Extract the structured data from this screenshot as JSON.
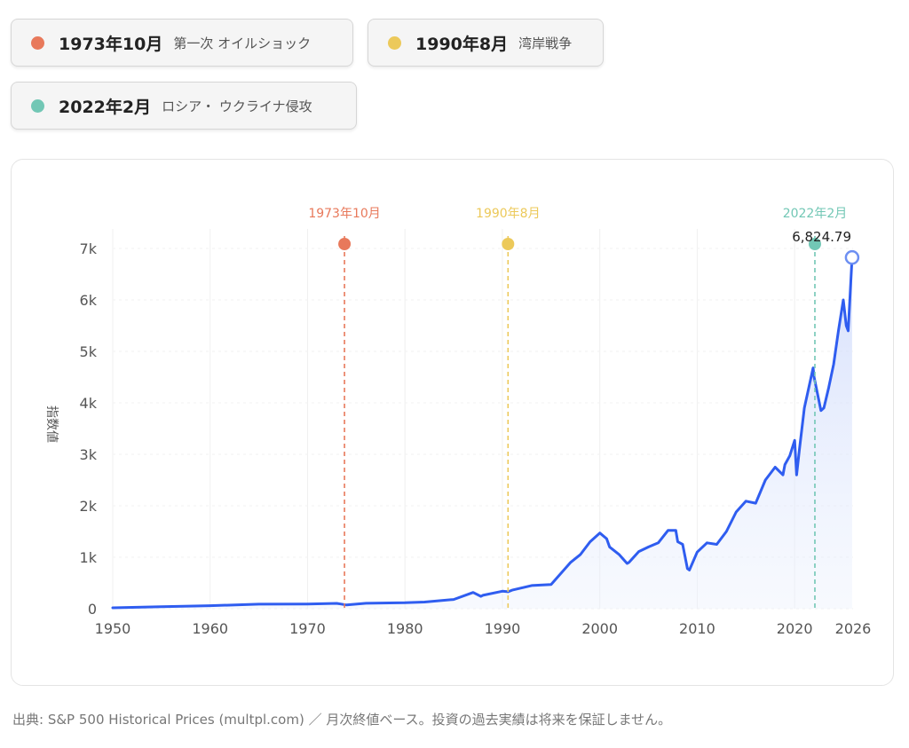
{
  "events": [
    {
      "date": "1973年10月",
      "desc": "第一次 オイルショック",
      "color": "#e8795b",
      "x": 1973.79
    },
    {
      "date": "1990年8月",
      "desc": "湾岸戦争",
      "color": "#ecc95a",
      "x": 1990.58
    },
    {
      "date": "2022年2月",
      "desc": "ロシア・ ウクライナ侵攻",
      "color": "#72c7b5",
      "x": 2022.08
    }
  ],
  "footer": {
    "source": "出典: S&P 500 Historical Prices (multpl.com) ／ 月次終値ベース。投資の過去実績は将来を保証しません。"
  },
  "chart_data": {
    "type": "area",
    "ylabel": "指数値",
    "xlabel": "",
    "xlim": [
      1950,
      2026
    ],
    "ylim": [
      0,
      7000
    ],
    "x_ticks": [
      {
        "value": 1950,
        "label": "1950"
      },
      {
        "value": 1960,
        "label": "1960"
      },
      {
        "value": 1970,
        "label": "1970"
      },
      {
        "value": 1980,
        "label": "1980"
      },
      {
        "value": 1990,
        "label": "1990"
      },
      {
        "value": 2000,
        "label": "2000"
      },
      {
        "value": 2010,
        "label": "2010"
      },
      {
        "value": 2020,
        "label": "2020"
      },
      {
        "value": 2026,
        "label": "2026"
      }
    ],
    "y_ticks": [
      {
        "value": 0,
        "label": "0"
      },
      {
        "value": 1000,
        "label": "1k"
      },
      {
        "value": 2000,
        "label": "2k"
      },
      {
        "value": 3000,
        "label": "3k"
      },
      {
        "value": 4000,
        "label": "4k"
      },
      {
        "value": 5000,
        "label": "5k"
      },
      {
        "value": 6000,
        "label": "6k"
      },
      {
        "value": 7000,
        "label": "7k"
      }
    ],
    "last_value_label": "6,824.79",
    "line_color": "#2f5df0",
    "x": [
      1950,
      1955,
      1960,
      1965,
      1970,
      1973,
      1974,
      1976,
      1980,
      1982,
      1985,
      1987,
      1987.8,
      1988,
      1990,
      1990.6,
      1991,
      1993,
      1995,
      1997,
      1998,
      1999,
      2000,
      2000.7,
      2001,
      2002,
      2002.8,
      2003,
      2004,
      2005,
      2006,
      2007,
      2007.8,
      2008,
      2008.5,
      2009,
      2009.2,
      2010,
      2011,
      2012,
      2013,
      2014,
      2015,
      2016,
      2017,
      2018,
      2018.8,
      2019,
      2019.5,
      2020,
      2020.2,
      2020.5,
      2021,
      2021.9,
      2022,
      2022.7,
      2023,
      2023.5,
      2024,
      2024.5,
      2025,
      2025.3,
      2025.5,
      2025.9
    ],
    "y": [
      17,
      40,
      58,
      88,
      92,
      104,
      72,
      105,
      115,
      130,
      180,
      315,
      240,
      260,
      340,
      330,
      360,
      450,
      470,
      900,
      1050,
      1300,
      1470,
      1360,
      1200,
      1050,
      880,
      900,
      1110,
      1200,
      1280,
      1520,
      1520,
      1300,
      1250,
      780,
      750,
      1100,
      1280,
      1250,
      1500,
      1880,
      2090,
      2050,
      2500,
      2750,
      2600,
      2800,
      2970,
      3270,
      2600,
      3100,
      3900,
      4680,
      4500,
      3850,
      3900,
      4300,
      4750,
      5400,
      6000,
      5500,
      5400,
      6824.79
    ],
    "events": [
      "1973年10月",
      "1990年8月",
      "2022年2月"
    ]
  }
}
